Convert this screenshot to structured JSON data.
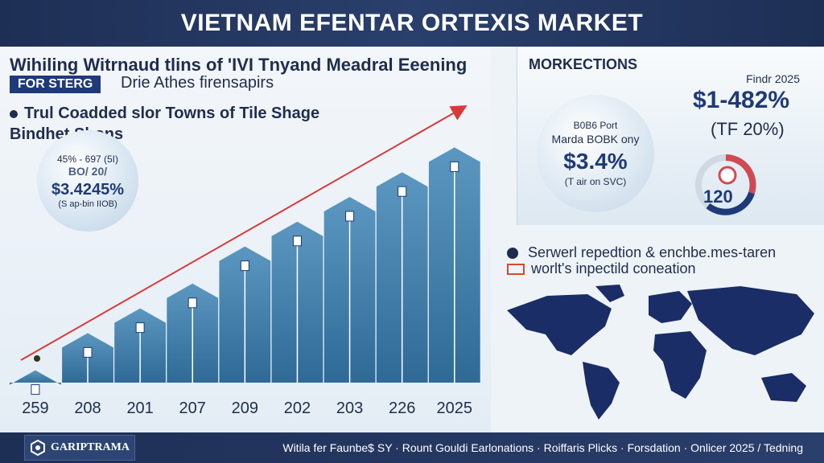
{
  "header": {
    "title": "VIETNAM EFENTAR ORTEXIS MARKET"
  },
  "left_panel": {
    "subtitle": "Wihiling Witrnaud tlins of 'IVI Tnyand Meadral Eeening",
    "tag": "FOR STERG",
    "tagline": "Drie Athes firensapirs",
    "bullet_line1": "Trul Coadded slor Towns of Tile Shage",
    "bullet_line2": "Bindhet Shons",
    "bubble": {
      "line1": "45% - 697 (5I)",
      "line2": "BO/ 20/",
      "value": "$3.4245%",
      "note": "(S ap-bin IIOB)"
    }
  },
  "chart_data": {
    "type": "bar",
    "title": "",
    "categories": [
      "259",
      "208",
      "201",
      "207",
      "209",
      "202",
      "203",
      "226",
      "2025"
    ],
    "values": [
      1,
      4,
      6,
      8,
      11,
      13,
      15,
      17,
      19
    ],
    "trend": "rising",
    "xlabel": "",
    "ylabel": "",
    "ylim": [
      0,
      20
    ]
  },
  "right_top": {
    "title": "MORKECTIONS",
    "forecast_label": "Findr 2025",
    "forecast_value": "$1-482%",
    "forecast_paren": "(TF 20%)",
    "bubble": {
      "line1": "B0B6 Port",
      "line2": "Marda BOBK ony",
      "value": "$3.4%",
      "note": "(T air on SVC)"
    },
    "ring_label": "120"
  },
  "right_bottom": {
    "line1": "Serwerl repedtion & enchbe.mes-taren",
    "line2": "worlt's inpectild coneation"
  },
  "footer": {
    "logo_text": "GARIPTRAMA",
    "text": "Witila fer Faunbe$ SY · Rount   Gouldi Earlonations · Roiffaris Plicks · Forsdation · Onlicer 2025 / Tedning"
  },
  "colors": {
    "accent": "#1f3a78",
    "trend_line": "#d63a3a",
    "bar": "#4a86b0",
    "header_bg": "#1e2f55"
  }
}
